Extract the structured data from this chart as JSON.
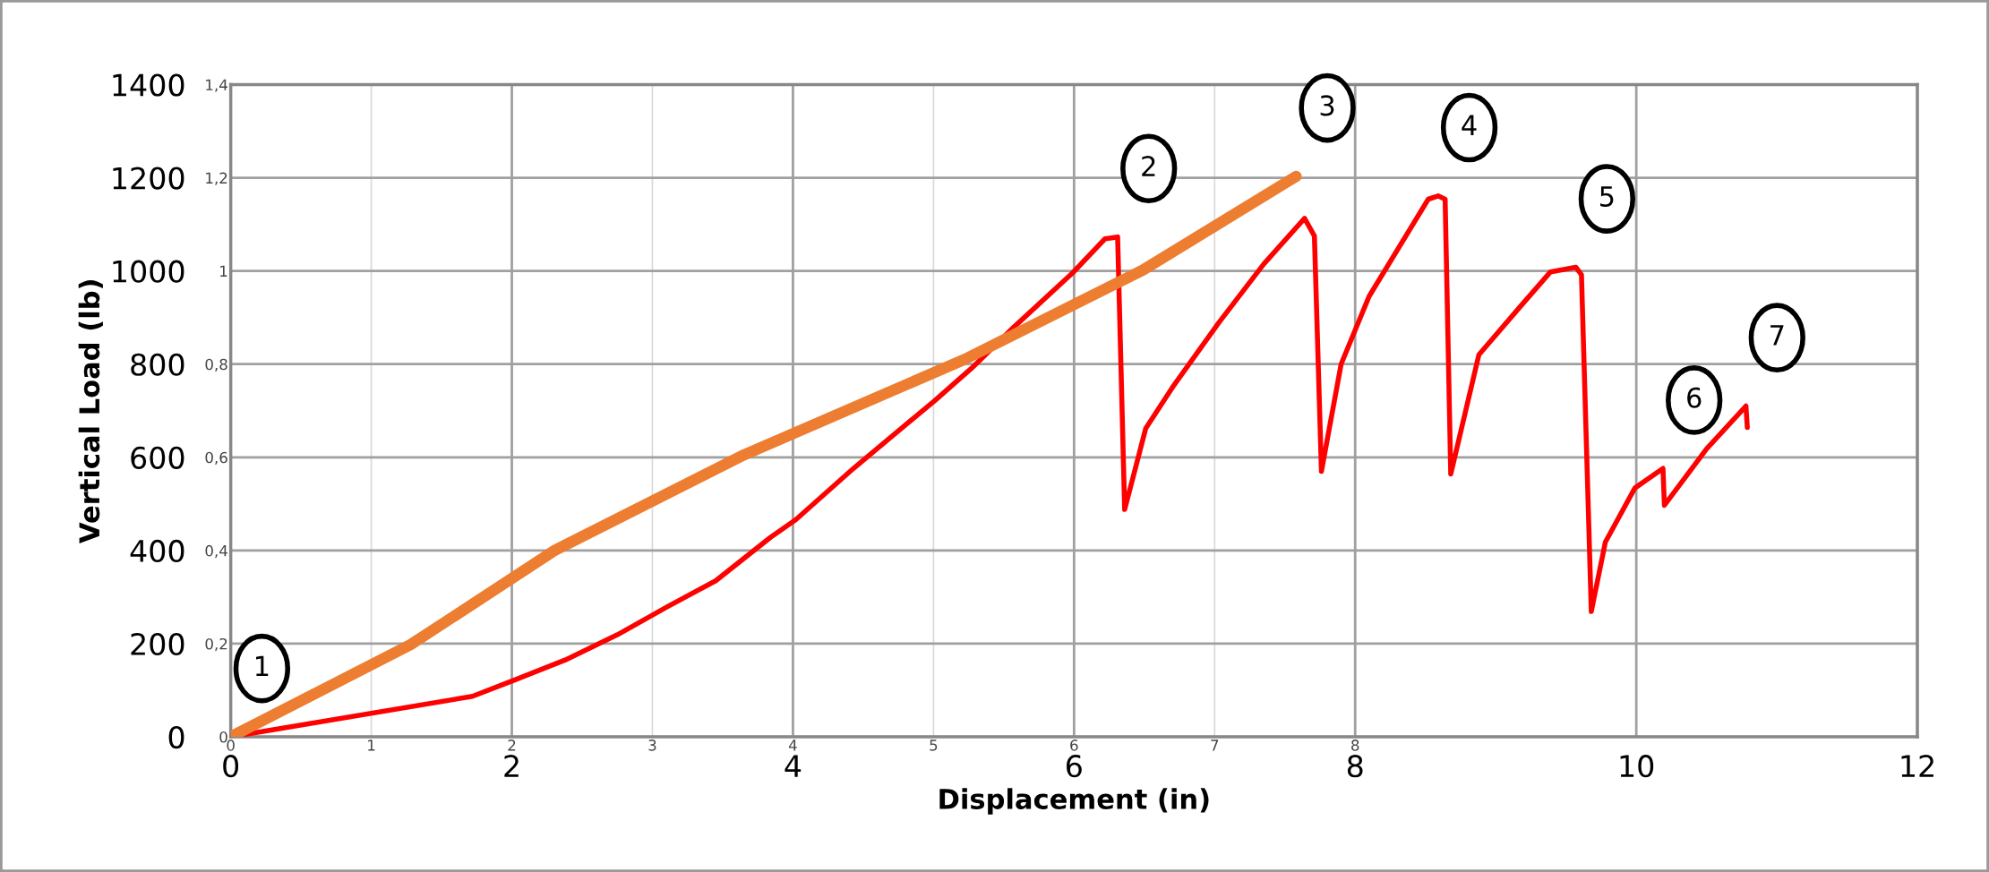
{
  "chart_data": {
    "type": "line",
    "xlabel": "Displacement (in)",
    "ylabel": "Vertical Load (lb)",
    "xlim": [
      0,
      12
    ],
    "xticks": [
      0,
      2,
      4,
      6,
      8,
      10,
      12
    ],
    "ylim": [
      0,
      1400
    ],
    "yticks": [
      0,
      200,
      400,
      600,
      800,
      1000,
      1200,
      1400
    ],
    "x2lim": [
      0,
      12
    ],
    "x2ticks": [
      0,
      1,
      2,
      3,
      4,
      5,
      6,
      7,
      8
    ],
    "y2lim": [
      0,
      1.4
    ],
    "y2ticks": [
      0,
      {
        "value": 0.2,
        "label": "0,2"
      },
      {
        "value": 0.4,
        "label": "0,4"
      },
      {
        "value": 0.6,
        "label": "0,6"
      },
      {
        "value": 0.8,
        "label": "0,8"
      },
      1,
      {
        "value": 1.2,
        "label": "1,2"
      },
      {
        "value": 1.4,
        "label": "1,4"
      }
    ],
    "grid": true,
    "marker": "none",
    "line_style": "solid",
    "series": [
      {
        "color": "#ff0000",
        "x": [
          0,
          1.72,
          2.01,
          2.38,
          2.75,
          3.11,
          3.45,
          3.84,
          4.02,
          4.43,
          5.01,
          5.27,
          5.57,
          5.99,
          6.22,
          6.31,
          6.36,
          6.51,
          6.7,
          7.03,
          7.35,
          7.64,
          7.71,
          7.76,
          7.9,
          8.1,
          8.52,
          8.59,
          8.64,
          8.68,
          8.88,
          9.19,
          9.39,
          9.57,
          9.61,
          9.68,
          9.78,
          9.99,
          10.19,
          10.2,
          10.5,
          10.78,
          10.79
        ],
        "values": [
          0,
          87,
          121,
          165,
          219,
          280,
          335,
          428,
          466,
          576,
          722,
          791,
          879,
          996,
          1069,
          1073,
          488,
          662,
          750,
          889,
          1015,
          1113,
          1075,
          570,
          800,
          946,
          1154,
          1161,
          1154,
          564,
          820,
          929,
          998,
          1008,
          992,
          269,
          418,
          534,
          576,
          497,
          618,
          710,
          664
        ]
      },
      {
        "color": "#ed7d31",
        "x": [
          0,
          1.28,
          2.31,
          3.65,
          5.22,
          6.49,
          7.58
        ],
        "values": [
          0,
          198,
          401,
          605,
          810,
          1002,
          1203
        ]
      }
    ],
    "annotations": [
      {
        "text": "1",
        "x": 0,
        "y": 0
      },
      {
        "text": "2",
        "x": 6.31,
        "y": 1073
      },
      {
        "text": "3",
        "x": 7.58,
        "y": 1203
      },
      {
        "text": "4",
        "x": 8.59,
        "y": 1161
      },
      {
        "text": "5",
        "x": 9.57,
        "y": 1008
      },
      {
        "text": "6",
        "x": 10.19,
        "y": 576
      },
      {
        "text": "7",
        "x": 10.78,
        "y": 710
      }
    ]
  }
}
